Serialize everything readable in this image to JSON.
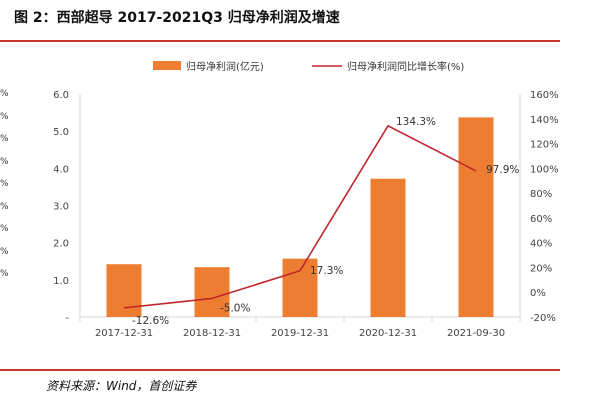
{
  "title": "图 2：西部超导 2017-2021Q3 归母净利润及增速",
  "source": "资料来源：Wind，首创证券",
  "edge_ticks": [
    "%",
    "%",
    "%",
    "%",
    "%",
    "%",
    "%",
    "%",
    "%"
  ],
  "chart_data": {
    "type": "bar+line",
    "categories": [
      "2017-12-31",
      "2018-12-31",
      "2019-12-31",
      "2020-12-31",
      "2021-09-30"
    ],
    "series": [
      {
        "name": "归母净利润(亿元)",
        "type": "bar",
        "axis": "left",
        "color": "#ed7d31",
        "values": [
          1.42,
          1.34,
          1.57,
          3.72,
          5.37
        ]
      },
      {
        "name": "归母净利润同比增长率(%)",
        "type": "line",
        "axis": "right",
        "color": "#c0272d",
        "values": [
          -12.6,
          -5.0,
          17.3,
          134.3,
          97.9
        ]
      }
    ],
    "data_labels": [
      "-12.6%",
      "-5.0%",
      "17.3%",
      "134.3%",
      "97.9%"
    ],
    "left_axis": {
      "ylim": [
        0,
        6
      ],
      "ticks": [
        "-",
        "1.0",
        "2.0",
        "3.0",
        "4.0",
        "5.0",
        "6.0"
      ]
    },
    "right_axis": {
      "ylim": [
        -20,
        160
      ],
      "ticks": [
        "-20%",
        "0%",
        "20%",
        "40%",
        "60%",
        "80%",
        "100%",
        "120%",
        "140%",
        "160%"
      ]
    },
    "legend_position": "top",
    "grid": false
  }
}
